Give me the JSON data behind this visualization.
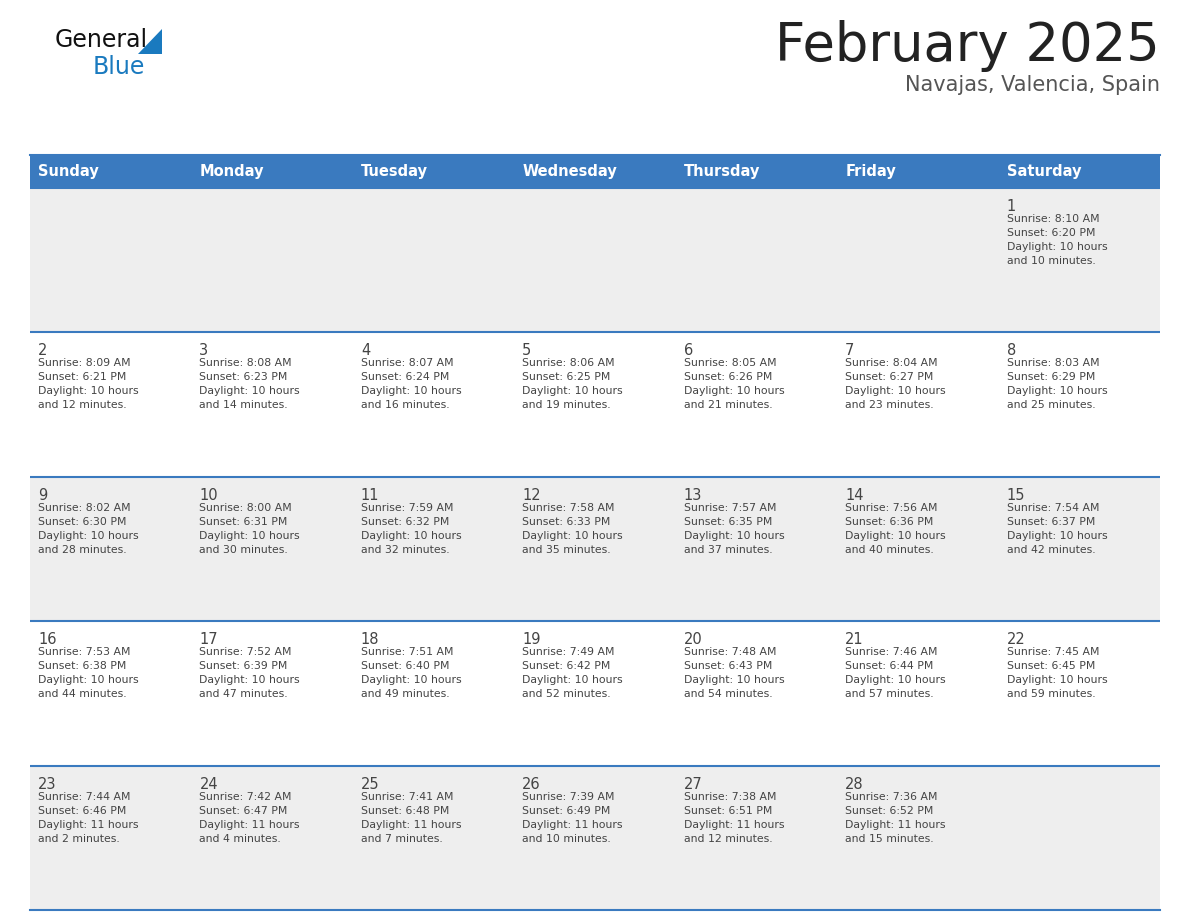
{
  "title": "February 2025",
  "subtitle": "Navajas, Valencia, Spain",
  "header_color": "#3a7abf",
  "header_text_color": "#ffffff",
  "day_names": [
    "Sunday",
    "Monday",
    "Tuesday",
    "Wednesday",
    "Thursday",
    "Friday",
    "Saturday"
  ],
  "row0_bg": "#eeeeee",
  "row1_bg": "#ffffff",
  "row2_bg": "#eeeeee",
  "row3_bg": "#ffffff",
  "row4_bg": "#eeeeee",
  "divider_color": "#3a7abf",
  "text_color": "#444444",
  "title_color": "#222222",
  "subtitle_color": "#555555",
  "logo_general_color": "#111111",
  "logo_blue_color": "#1a7abf",
  "calendar": [
    [
      null,
      null,
      null,
      null,
      null,
      null,
      {
        "day": 1,
        "sunrise": "8:10 AM",
        "sunset": "6:20 PM",
        "daylight": "10 hours\nand 10 minutes."
      }
    ],
    [
      {
        "day": 2,
        "sunrise": "8:09 AM",
        "sunset": "6:21 PM",
        "daylight": "10 hours\nand 12 minutes."
      },
      {
        "day": 3,
        "sunrise": "8:08 AM",
        "sunset": "6:23 PM",
        "daylight": "10 hours\nand 14 minutes."
      },
      {
        "day": 4,
        "sunrise": "8:07 AM",
        "sunset": "6:24 PM",
        "daylight": "10 hours\nand 16 minutes."
      },
      {
        "day": 5,
        "sunrise": "8:06 AM",
        "sunset": "6:25 PM",
        "daylight": "10 hours\nand 19 minutes."
      },
      {
        "day": 6,
        "sunrise": "8:05 AM",
        "sunset": "6:26 PM",
        "daylight": "10 hours\nand 21 minutes."
      },
      {
        "day": 7,
        "sunrise": "8:04 AM",
        "sunset": "6:27 PM",
        "daylight": "10 hours\nand 23 minutes."
      },
      {
        "day": 8,
        "sunrise": "8:03 AM",
        "sunset": "6:29 PM",
        "daylight": "10 hours\nand 25 minutes."
      }
    ],
    [
      {
        "day": 9,
        "sunrise": "8:02 AM",
        "sunset": "6:30 PM",
        "daylight": "10 hours\nand 28 minutes."
      },
      {
        "day": 10,
        "sunrise": "8:00 AM",
        "sunset": "6:31 PM",
        "daylight": "10 hours\nand 30 minutes."
      },
      {
        "day": 11,
        "sunrise": "7:59 AM",
        "sunset": "6:32 PM",
        "daylight": "10 hours\nand 32 minutes."
      },
      {
        "day": 12,
        "sunrise": "7:58 AM",
        "sunset": "6:33 PM",
        "daylight": "10 hours\nand 35 minutes."
      },
      {
        "day": 13,
        "sunrise": "7:57 AM",
        "sunset": "6:35 PM",
        "daylight": "10 hours\nand 37 minutes."
      },
      {
        "day": 14,
        "sunrise": "7:56 AM",
        "sunset": "6:36 PM",
        "daylight": "10 hours\nand 40 minutes."
      },
      {
        "day": 15,
        "sunrise": "7:54 AM",
        "sunset": "6:37 PM",
        "daylight": "10 hours\nand 42 minutes."
      }
    ],
    [
      {
        "day": 16,
        "sunrise": "7:53 AM",
        "sunset": "6:38 PM",
        "daylight": "10 hours\nand 44 minutes."
      },
      {
        "day": 17,
        "sunrise": "7:52 AM",
        "sunset": "6:39 PM",
        "daylight": "10 hours\nand 47 minutes."
      },
      {
        "day": 18,
        "sunrise": "7:51 AM",
        "sunset": "6:40 PM",
        "daylight": "10 hours\nand 49 minutes."
      },
      {
        "day": 19,
        "sunrise": "7:49 AM",
        "sunset": "6:42 PM",
        "daylight": "10 hours\nand 52 minutes."
      },
      {
        "day": 20,
        "sunrise": "7:48 AM",
        "sunset": "6:43 PM",
        "daylight": "10 hours\nand 54 minutes."
      },
      {
        "day": 21,
        "sunrise": "7:46 AM",
        "sunset": "6:44 PM",
        "daylight": "10 hours\nand 57 minutes."
      },
      {
        "day": 22,
        "sunrise": "7:45 AM",
        "sunset": "6:45 PM",
        "daylight": "10 hours\nand 59 minutes."
      }
    ],
    [
      {
        "day": 23,
        "sunrise": "7:44 AM",
        "sunset": "6:46 PM",
        "daylight": "11 hours\nand 2 minutes."
      },
      {
        "day": 24,
        "sunrise": "7:42 AM",
        "sunset": "6:47 PM",
        "daylight": "11 hours\nand 4 minutes."
      },
      {
        "day": 25,
        "sunrise": "7:41 AM",
        "sunset": "6:48 PM",
        "daylight": "11 hours\nand 7 minutes."
      },
      {
        "day": 26,
        "sunrise": "7:39 AM",
        "sunset": "6:49 PM",
        "daylight": "11 hours\nand 10 minutes."
      },
      {
        "day": 27,
        "sunrise": "7:38 AM",
        "sunset": "6:51 PM",
        "daylight": "11 hours\nand 12 minutes."
      },
      {
        "day": 28,
        "sunrise": "7:36 AM",
        "sunset": "6:52 PM",
        "daylight": "11 hours\nand 15 minutes."
      },
      null
    ]
  ]
}
